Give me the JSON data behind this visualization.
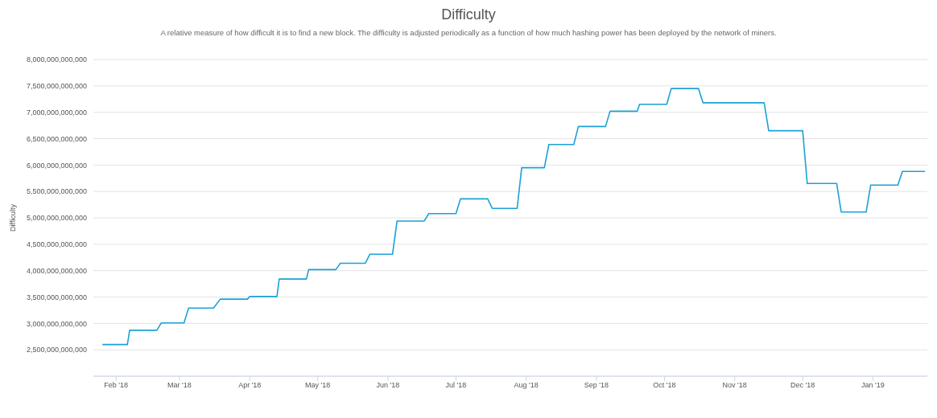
{
  "chart_data": {
    "type": "line",
    "title": "Difficulty",
    "subtitle": "A relative measure of how difficult it is to find a new block. The difficulty is adjusted periodically as a function of how much hashing power has been deployed by the network of miners.",
    "ylabel": "Difficulty",
    "x": [
      "2018-01-26",
      "2018-02-06",
      "2018-02-07",
      "2018-02-19",
      "2018-02-21",
      "2018-03-03",
      "2018-03-05",
      "2018-03-16",
      "2018-03-19",
      "2018-03-31",
      "2018-04-01",
      "2018-04-13",
      "2018-04-14",
      "2018-04-26",
      "2018-04-27",
      "2018-05-09",
      "2018-05-11",
      "2018-05-22",
      "2018-05-24",
      "2018-06-03",
      "2018-06-05",
      "2018-06-17",
      "2018-06-19",
      "2018-07-01",
      "2018-07-03",
      "2018-07-15",
      "2018-07-17",
      "2018-07-28",
      "2018-07-30",
      "2018-08-09",
      "2018-08-11",
      "2018-08-22",
      "2018-08-24",
      "2018-09-05",
      "2018-09-07",
      "2018-09-19",
      "2018-09-20",
      "2018-10-02",
      "2018-10-04",
      "2018-10-16",
      "2018-10-18",
      "2018-11-14",
      "2018-11-16",
      "2018-12-01",
      "2018-12-03",
      "2018-12-16",
      "2018-12-18",
      "2018-12-29",
      "2018-12-31",
      "2019-01-12",
      "2019-01-14",
      "2019-01-24"
    ],
    "series": [
      {
        "color": "#1ba1d8",
        "values": [
          2600000000000,
          2600000000000,
          2870000000000,
          2870000000000,
          3010000000000,
          3010000000000,
          3290000000000,
          3290000000000,
          3460000000000,
          3460000000000,
          3510000000000,
          3510000000000,
          3840000000000,
          3840000000000,
          4020000000000,
          4020000000000,
          4140000000000,
          4140000000000,
          4310000000000,
          4310000000000,
          4940000000000,
          4940000000000,
          5080000000000,
          5080000000000,
          5360000000000,
          5360000000000,
          5180000000000,
          5180000000000,
          5950000000000,
          5950000000000,
          6390000000000,
          6390000000000,
          6730000000000,
          6730000000000,
          7020000000000,
          7020000000000,
          7150000000000,
          7150000000000,
          7450000000000,
          7450000000000,
          7180000000000,
          7180000000000,
          6650000000000,
          6650000000000,
          5650000000000,
          5650000000000,
          5110000000000,
          5110000000000,
          5620000000000,
          5620000000000,
          5880000000000,
          5880000000000
        ]
      }
    ],
    "xlim": [
      "2018-01-22",
      "2019-01-25"
    ],
    "xticks": [
      {
        "value": "2018-02-01",
        "label": "Feb '18"
      },
      {
        "value": "2018-03-01",
        "label": "Mar '18"
      },
      {
        "value": "2018-04-01",
        "label": "Apr '18"
      },
      {
        "value": "2018-05-01",
        "label": "May '18"
      },
      {
        "value": "2018-06-01",
        "label": "Jun '18"
      },
      {
        "value": "2018-07-01",
        "label": "Jul '18"
      },
      {
        "value": "2018-08-01",
        "label": "Aug '18"
      },
      {
        "value": "2018-09-01",
        "label": "Sep '18"
      },
      {
        "value": "2018-10-01",
        "label": "Oct '18"
      },
      {
        "value": "2018-11-01",
        "label": "Nov '18"
      },
      {
        "value": "2018-12-01",
        "label": "Dec '18"
      },
      {
        "value": "2019-01-01",
        "label": "Jan '19"
      }
    ],
    "ylim": [
      2000000000000,
      8000000000000
    ],
    "yticks": [
      {
        "value": 2500000000000,
        "label": "2,500,000,000,000"
      },
      {
        "value": 3000000000000,
        "label": "3,000,000,000,000"
      },
      {
        "value": 3500000000000,
        "label": "3,500,000,000,000"
      },
      {
        "value": 4000000000000,
        "label": "4,000,000,000,000"
      },
      {
        "value": 4500000000000,
        "label": "4,500,000,000,000"
      },
      {
        "value": 5000000000000,
        "label": "5,000,000,000,000"
      },
      {
        "value": 5500000000000,
        "label": "5,500,000,000,000"
      },
      {
        "value": 6000000000000,
        "label": "6,000,000,000,000"
      },
      {
        "value": 6500000000000,
        "label": "6,500,000,000,000"
      },
      {
        "value": 7000000000000,
        "label": "7,000,000,000,000"
      },
      {
        "value": 7500000000000,
        "label": "7,500,000,000,000"
      },
      {
        "value": 8000000000000,
        "label": "8,000,000,000,000"
      }
    ],
    "grid": "y",
    "legend": false,
    "marker": "none",
    "line_style": "solid"
  }
}
